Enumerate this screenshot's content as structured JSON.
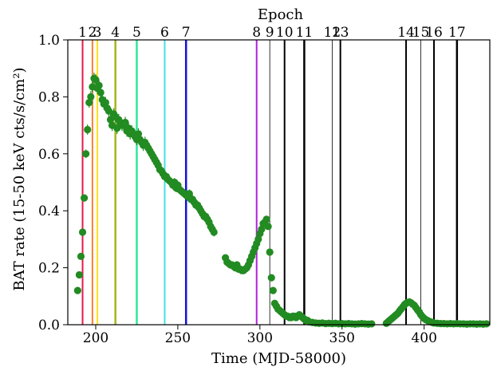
{
  "chart_data": {
    "type": "scatter",
    "title": "Epoch",
    "xlabel": "Time (MJD-58000)",
    "ylabel": "BAT rate (15-50 keV cts/s/cm²)",
    "xlim": [
      183,
      440
    ],
    "ylim": [
      0,
      1.0
    ],
    "xticks": [
      200,
      250,
      300,
      350,
      400
    ],
    "yticks": [
      0.0,
      0.2,
      0.4,
      0.6,
      0.8,
      1.0
    ],
    "xtick_labels": [
      "200",
      "250",
      "300",
      "350",
      "400"
    ],
    "ytick_labels": [
      "0.0",
      "0.2",
      "0.4",
      "0.6",
      "0.8",
      "1.0"
    ],
    "grid": false,
    "point_color": "#228B22",
    "epochs": [
      {
        "label": "1",
        "x": 192,
        "color": "#e6194b",
        "width": 2
      },
      {
        "label": "2",
        "x": 198,
        "color": "#f58231",
        "width": 2
      },
      {
        "label": "3",
        "x": 201,
        "color": "#ffe119",
        "width": 2
      },
      {
        "label": "4",
        "x": 212,
        "color": "#a5b51e",
        "width": 2.5
      },
      {
        "label": "5",
        "x": 225,
        "color": "#2ee89a",
        "width": 2.5
      },
      {
        "label": "6",
        "x": 242,
        "color": "#45e0e0",
        "width": 2
      },
      {
        "label": "7",
        "x": 255,
        "color": "#1111dd",
        "width": 2.5
      },
      {
        "label": "8",
        "x": 298,
        "color": "#b020d8",
        "width": 2
      },
      {
        "label": "9",
        "x": 306,
        "color": "#000000",
        "width": 0.8
      },
      {
        "label": "10",
        "x": 315,
        "color": "#000000",
        "width": 2
      },
      {
        "label": "11",
        "x": 327,
        "color": "#000000",
        "width": 2.5
      },
      {
        "label": "12",
        "x": 344,
        "color": "#000000",
        "width": 0.8
      },
      {
        "label": "13",
        "x": 349,
        "color": "#000000",
        "width": 2
      },
      {
        "label": "14",
        "x": 389,
        "color": "#000000",
        "width": 2
      },
      {
        "label": "15",
        "x": 398,
        "color": "#000000",
        "width": 0.8
      },
      {
        "label": "16",
        "x": 406,
        "color": "#000000",
        "width": 2
      },
      {
        "label": "17",
        "x": 420,
        "color": "#000000",
        "width": 2.5
      }
    ],
    "points": [
      [
        189,
        0.12,
        0.008
      ],
      [
        190,
        0.175,
        0.01
      ],
      [
        191,
        0.24,
        0.01
      ],
      [
        192,
        0.325,
        0.01
      ],
      [
        193,
        0.445,
        0.012
      ],
      [
        194,
        0.6,
        0.015
      ],
      [
        195,
        0.685,
        0.018
      ],
      [
        196,
        0.78,
        0.018
      ],
      [
        197,
        0.8,
        0.02
      ],
      [
        198,
        0.835,
        0.02
      ],
      [
        199,
        0.865,
        0.02
      ],
      [
        200,
        0.86,
        0.02
      ],
      [
        201,
        0.83,
        0.02
      ],
      [
        202,
        0.84,
        0.02
      ],
      [
        203,
        0.815,
        0.02
      ],
      [
        204,
        0.79,
        0.02
      ],
      [
        205,
        0.775,
        0.02
      ],
      [
        206,
        0.78,
        0.02
      ],
      [
        207,
        0.76,
        0.02
      ],
      [
        208,
        0.75,
        0.02
      ],
      [
        209,
        0.72,
        0.02
      ],
      [
        210,
        0.7,
        0.02
      ],
      [
        211,
        0.74,
        0.02
      ],
      [
        212,
        0.73,
        0.02
      ],
      [
        213,
        0.69,
        0.02
      ],
      [
        214,
        0.72,
        0.02
      ],
      [
        215,
        0.71,
        0.02
      ],
      [
        216,
        0.7,
        0.02
      ],
      [
        217,
        0.7,
        0.02
      ],
      [
        218,
        0.71,
        0.02
      ],
      [
        219,
        0.68,
        0.02
      ],
      [
        220,
        0.69,
        0.02
      ],
      [
        221,
        0.67,
        0.02
      ],
      [
        222,
        0.68,
        0.02
      ],
      [
        223,
        0.67,
        0.02
      ],
      [
        224,
        0.66,
        0.02
      ],
      [
        225,
        0.65,
        0.02
      ],
      [
        226,
        0.67,
        0.02
      ],
      [
        227,
        0.65,
        0.02
      ],
      [
        228,
        0.64,
        0.02
      ],
      [
        229,
        0.63,
        0.02
      ],
      [
        230,
        0.64,
        0.02
      ],
      [
        231,
        0.63,
        0.02
      ],
      [
        232,
        0.62,
        0.02
      ],
      [
        233,
        0.61,
        0.02
      ],
      [
        234,
        0.6,
        0.02
      ],
      [
        235,
        0.59,
        0.02
      ],
      [
        236,
        0.58,
        0.02
      ],
      [
        237,
        0.57,
        0.02
      ],
      [
        238,
        0.56,
        0.02
      ],
      [
        239,
        0.545,
        0.015
      ],
      [
        240,
        0.54,
        0.015
      ],
      [
        241,
        0.53,
        0.015
      ],
      [
        242,
        0.52,
        0.015
      ],
      [
        243,
        0.52,
        0.015
      ],
      [
        244,
        0.51,
        0.015
      ],
      [
        245,
        0.505,
        0.015
      ],
      [
        246,
        0.5,
        0.015
      ],
      [
        247,
        0.49,
        0.015
      ],
      [
        248,
        0.5,
        0.015
      ],
      [
        249,
        0.48,
        0.015
      ],
      [
        250,
        0.49,
        0.015
      ],
      [
        251,
        0.475,
        0.015
      ],
      [
        252,
        0.47,
        0.015
      ],
      [
        253,
        0.465,
        0.015
      ],
      [
        254,
        0.46,
        0.015
      ],
      [
        255,
        0.455,
        0.015
      ],
      [
        256,
        0.45,
        0.015
      ],
      [
        257,
        0.46,
        0.015
      ],
      [
        258,
        0.44,
        0.015
      ],
      [
        259,
        0.44,
        0.015
      ],
      [
        260,
        0.43,
        0.015
      ],
      [
        261,
        0.42,
        0.015
      ],
      [
        262,
        0.42,
        0.015
      ],
      [
        263,
        0.41,
        0.015
      ],
      [
        264,
        0.4,
        0.015
      ],
      [
        265,
        0.39,
        0.015
      ],
      [
        266,
        0.38,
        0.015
      ],
      [
        267,
        0.38,
        0.015
      ],
      [
        268,
        0.37,
        0.015
      ],
      [
        269,
        0.36,
        0.015
      ],
      [
        270,
        0.345,
        0.015
      ],
      [
        271,
        0.335,
        0.015
      ],
      [
        272,
        0.325,
        0.015
      ],
      [
        279,
        0.235,
        0.01
      ],
      [
        280,
        0.22,
        0.01
      ],
      [
        281,
        0.215,
        0.01
      ],
      [
        282,
        0.21,
        0.01
      ],
      [
        283,
        0.21,
        0.01
      ],
      [
        284,
        0.205,
        0.01
      ],
      [
        285,
        0.2,
        0.01
      ],
      [
        286,
        0.21,
        0.01
      ],
      [
        287,
        0.195,
        0.01
      ],
      [
        288,
        0.195,
        0.01
      ],
      [
        289,
        0.19,
        0.01
      ],
      [
        290,
        0.19,
        0.01
      ],
      [
        291,
        0.195,
        0.01
      ],
      [
        292,
        0.2,
        0.01
      ],
      [
        293,
        0.21,
        0.01
      ],
      [
        294,
        0.225,
        0.01
      ],
      [
        295,
        0.24,
        0.01
      ],
      [
        296,
        0.255,
        0.01
      ],
      [
        297,
        0.27,
        0.01
      ],
      [
        298,
        0.285,
        0.01
      ],
      [
        299,
        0.3,
        0.01
      ],
      [
        300,
        0.32,
        0.01
      ],
      [
        301,
        0.335,
        0.01
      ],
      [
        302,
        0.355,
        0.01
      ],
      [
        303,
        0.36,
        0.01
      ],
      [
        304,
        0.37,
        0.01
      ],
      [
        305,
        0.345,
        0.01
      ],
      [
        306,
        0.255,
        0.01
      ],
      [
        307,
        0.165,
        0.01
      ],
      [
        308,
        0.12,
        0.008
      ],
      [
        309,
        0.075,
        0.008
      ],
      [
        310,
        0.065,
        0.008
      ],
      [
        311,
        0.055,
        0.008
      ],
      [
        312,
        0.05,
        0.008
      ],
      [
        313,
        0.045,
        0.008
      ],
      [
        314,
        0.04,
        0.008
      ],
      [
        315,
        0.035,
        0.008
      ],
      [
        316,
        0.03,
        0.008
      ],
      [
        317,
        0.03,
        0.008
      ],
      [
        318,
        0.025,
        0.008
      ],
      [
        319,
        0.025,
        0.008
      ],
      [
        320,
        0.03,
        0.008
      ],
      [
        321,
        0.03,
        0.008
      ],
      [
        322,
        0.025,
        0.008
      ],
      [
        323,
        0.03,
        0.008
      ],
      [
        324,
        0.035,
        0.008
      ],
      [
        325,
        0.03,
        0.008
      ],
      [
        326,
        0.025,
        0.008
      ],
      [
        327,
        0.02,
        0.006
      ],
      [
        328,
        0.015,
        0.006
      ],
      [
        329,
        0.015,
        0.006
      ],
      [
        330,
        0.01,
        0.006
      ],
      [
        332,
        0.008,
        0.005
      ],
      [
        334,
        0.006,
        0.005
      ],
      [
        336,
        0.005,
        0.005
      ],
      [
        338,
        0.006,
        0.005
      ],
      [
        340,
        0.004,
        0.005
      ],
      [
        342,
        0.005,
        0.005
      ],
      [
        344,
        0.004,
        0.005
      ],
      [
        346,
        0.005,
        0.005
      ],
      [
        348,
        0.003,
        0.005
      ],
      [
        350,
        0.004,
        0.005
      ],
      [
        352,
        0.003,
        0.005
      ],
      [
        354,
        0.004,
        0.005
      ],
      [
        356,
        0.003,
        0.005
      ],
      [
        358,
        0.002,
        0.005
      ],
      [
        360,
        0.003,
        0.005
      ],
      [
        362,
        0.004,
        0.005
      ],
      [
        364,
        0.003,
        0.005
      ],
      [
        366,
        0.002,
        0.005
      ],
      [
        368,
        0.003,
        0.005
      ],
      [
        377,
        0.005,
        0.005
      ],
      [
        378,
        0.01,
        0.005
      ],
      [
        379,
        0.015,
        0.006
      ],
      [
        380,
        0.02,
        0.006
      ],
      [
        381,
        0.025,
        0.006
      ],
      [
        382,
        0.03,
        0.006
      ],
      [
        383,
        0.035,
        0.006
      ],
      [
        384,
        0.04,
        0.006
      ],
      [
        385,
        0.048,
        0.006
      ],
      [
        386,
        0.055,
        0.006
      ],
      [
        387,
        0.062,
        0.006
      ],
      [
        388,
        0.07,
        0.006
      ],
      [
        389,
        0.075,
        0.006
      ],
      [
        390,
        0.078,
        0.006
      ],
      [
        391,
        0.08,
        0.006
      ],
      [
        392,
        0.077,
        0.006
      ],
      [
        393,
        0.072,
        0.006
      ],
      [
        394,
        0.068,
        0.006
      ],
      [
        395,
        0.06,
        0.006
      ],
      [
        396,
        0.052,
        0.006
      ],
      [
        397,
        0.045,
        0.006
      ],
      [
        398,
        0.035,
        0.006
      ],
      [
        399,
        0.028,
        0.006
      ],
      [
        400,
        0.022,
        0.006
      ],
      [
        401,
        0.018,
        0.006
      ],
      [
        402,
        0.015,
        0.006
      ],
      [
        403,
        0.012,
        0.005
      ],
      [
        404,
        0.01,
        0.005
      ],
      [
        405,
        0.008,
        0.005
      ],
      [
        406,
        0.006,
        0.005
      ],
      [
        408,
        0.005,
        0.005
      ],
      [
        410,
        0.004,
        0.005
      ],
      [
        412,
        0.004,
        0.005
      ],
      [
        414,
        0.003,
        0.005
      ],
      [
        416,
        0.004,
        0.005
      ],
      [
        418,
        0.003,
        0.005
      ],
      [
        420,
        0.004,
        0.005
      ],
      [
        422,
        0.003,
        0.005
      ],
      [
        424,
        0.003,
        0.005
      ],
      [
        426,
        0.002,
        0.005
      ],
      [
        428,
        0.003,
        0.005
      ],
      [
        430,
        0.003,
        0.005
      ],
      [
        432,
        0.002,
        0.005
      ],
      [
        434,
        0.003,
        0.005
      ],
      [
        436,
        0.002,
        0.005
      ],
      [
        438,
        0.003,
        0.005
      ]
    ]
  }
}
